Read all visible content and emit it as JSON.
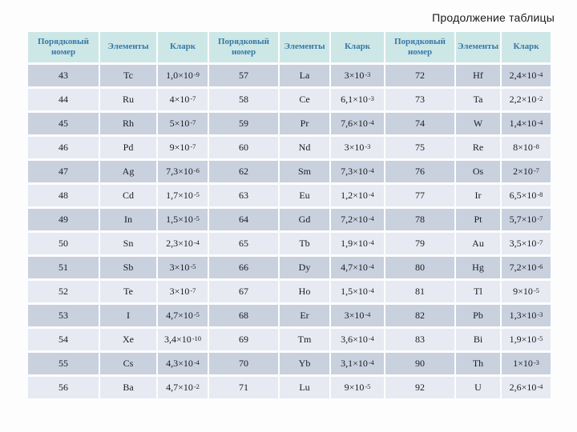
{
  "title": "Продолжение таблицы",
  "table": {
    "column_headers": [
      "Порядковый номер",
      "Элементы",
      "Кларк"
    ],
    "groups": [
      {
        "rows": [
          {
            "n": "43",
            "element": "Tc",
            "clarke": "1,0×10^-9"
          },
          {
            "n": "44",
            "element": "Ru",
            "clarke": "4×10^-7"
          },
          {
            "n": "45",
            "element": "Rh",
            "clarke": "5×10^-7"
          },
          {
            "n": "46",
            "element": "Pd",
            "clarke": "9×10^-7"
          },
          {
            "n": "47",
            "element": "Ag",
            "clarke": "7,3×10^-6"
          },
          {
            "n": "48",
            "element": "Cd",
            "clarke": "1,7×10^-5"
          },
          {
            "n": "49",
            "element": "In",
            "clarke": "1,5×10^-5"
          },
          {
            "n": "50",
            "element": "Sn",
            "clarke": "2,3×10^-4"
          },
          {
            "n": "51",
            "element": "Sb",
            "clarke": "3×10^-5"
          },
          {
            "n": "52",
            "element": "Te",
            "clarke": "3×10^-7"
          },
          {
            "n": "53",
            "element": "I",
            "clarke": "4,7×10^-5"
          },
          {
            "n": "54",
            "element": "Xe",
            "clarke": "3,4×10^-10"
          },
          {
            "n": "55",
            "element": "Cs",
            "clarke": "4,3×10^-4"
          },
          {
            "n": "56",
            "element": "Ba",
            "clarke": "4,7×10^-2"
          }
        ]
      },
      {
        "rows": [
          {
            "n": "57",
            "element": "La",
            "clarke": "3×10^-3"
          },
          {
            "n": "58",
            "element": "Ce",
            "clarke": "6,1×10^-3"
          },
          {
            "n": "59",
            "element": "Pr",
            "clarke": "7,6×10^-4"
          },
          {
            "n": "60",
            "element": "Nd",
            "clarke": "3×10^-3"
          },
          {
            "n": "62",
            "element": "Sm",
            "clarke": "7,3×10^-4"
          },
          {
            "n": "63",
            "element": "Eu",
            "clarke": "1,2×10^-4"
          },
          {
            "n": "64",
            "element": "Gd",
            "clarke": "7,2×10^-4"
          },
          {
            "n": "65",
            "element": "Tb",
            "clarke": "1,9×10^-4"
          },
          {
            "n": "66",
            "element": "Dy",
            "clarke": "4,7×10^-4"
          },
          {
            "n": "67",
            "element": "Ho",
            "clarke": "1,5×10^-4"
          },
          {
            "n": "68",
            "element": "Er",
            "clarke": "3×10^-4"
          },
          {
            "n": "69",
            "element": "Tm",
            "clarke": "3,6×10^-4"
          },
          {
            "n": "70",
            "element": "Yb",
            "clarke": "3,1×10^-4"
          },
          {
            "n": "71",
            "element": "Lu",
            "clarke": "9×10^-5"
          }
        ]
      },
      {
        "rows": [
          {
            "n": "72",
            "element": "Hf",
            "clarke": "2,4×10^-4"
          },
          {
            "n": "73",
            "element": "Ta",
            "clarke": "2,2×10^-2"
          },
          {
            "n": "74",
            "element": "W",
            "clarke": "1,4×10^-4"
          },
          {
            "n": "75",
            "element": "Re",
            "clarke": "8×10^-8"
          },
          {
            "n": "76",
            "element": "Os",
            "clarke": "2×10^-7"
          },
          {
            "n": "77",
            "element": "Ir",
            "clarke": "6,5×10^-8"
          },
          {
            "n": "78",
            "element": "Pt",
            "clarke": "5,7×10^-7"
          },
          {
            "n": "79",
            "element": "Au",
            "clarke": "3,5×10^-7"
          },
          {
            "n": "80",
            "element": "Hg",
            "clarke": "7,2×10^-6"
          },
          {
            "n": "81",
            "element": "Tl",
            "clarke": "9×10^-5"
          },
          {
            "n": "82",
            "element": "Pb",
            "clarke": "1,3×10^-3"
          },
          {
            "n": "83",
            "element": "Bi",
            "clarke": "1,9×10^-5"
          },
          {
            "n": "90",
            "element": "Th",
            "clarke": "1×10^-3"
          },
          {
            "n": "92",
            "element": "U",
            "clarke": "2,6×10^-4"
          }
        ]
      }
    ]
  },
  "colors": {
    "page_bg": "#fdfdfd",
    "header_bg": "#cde7e7",
    "header_text": "#3779a5",
    "row_dark": "#c9d1df",
    "row_light": "#e7eaf2",
    "title_text": "#1a1a1a"
  }
}
